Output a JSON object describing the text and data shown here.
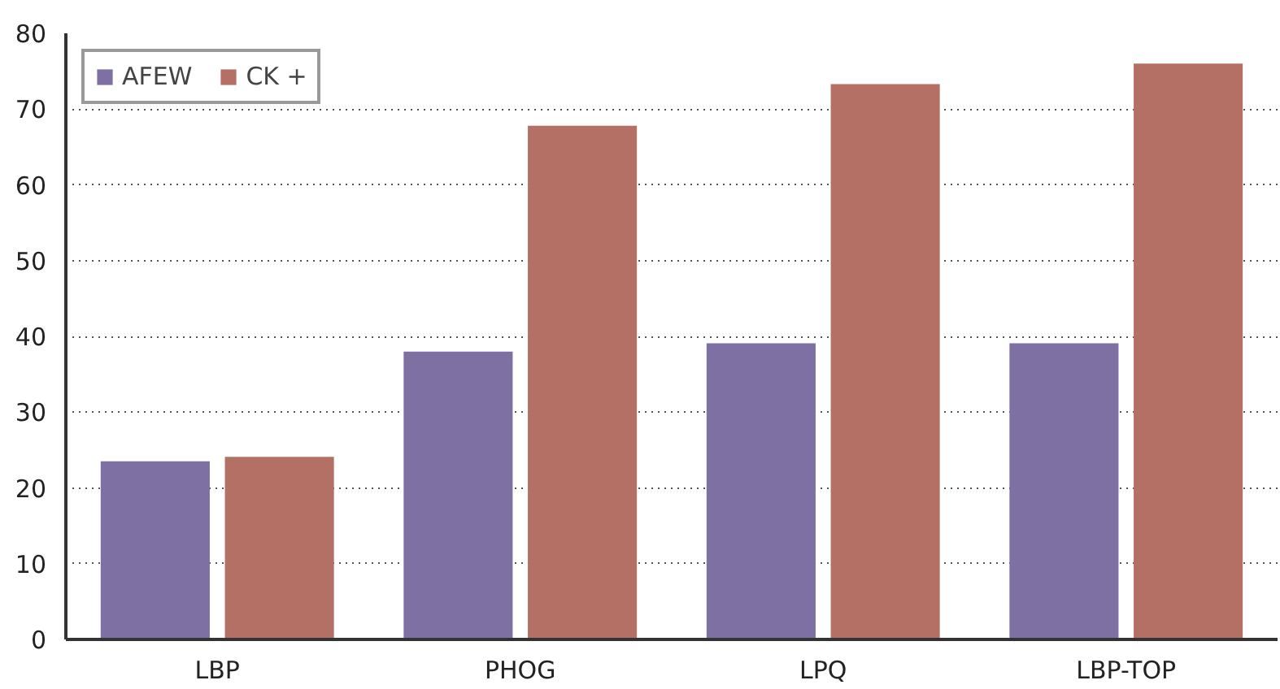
{
  "chart_data": {
    "type": "bar",
    "categories": [
      "LBP",
      "PHOG",
      "LPQ",
      "LBP-TOP"
    ],
    "series": [
      {
        "name": "AFEW",
        "color": "#7e70a3",
        "values": [
          23.5,
          38.0,
          39.1,
          39.1
        ]
      },
      {
        "name": "CK +",
        "color": "#b57065",
        "values": [
          24.1,
          67.8,
          73.3,
          76.0
        ]
      }
    ],
    "ylim": [
      0,
      80
    ],
    "yticks": [
      0,
      10,
      20,
      30,
      40,
      50,
      60,
      70,
      80
    ],
    "grid": "y",
    "legend": "top left"
  }
}
